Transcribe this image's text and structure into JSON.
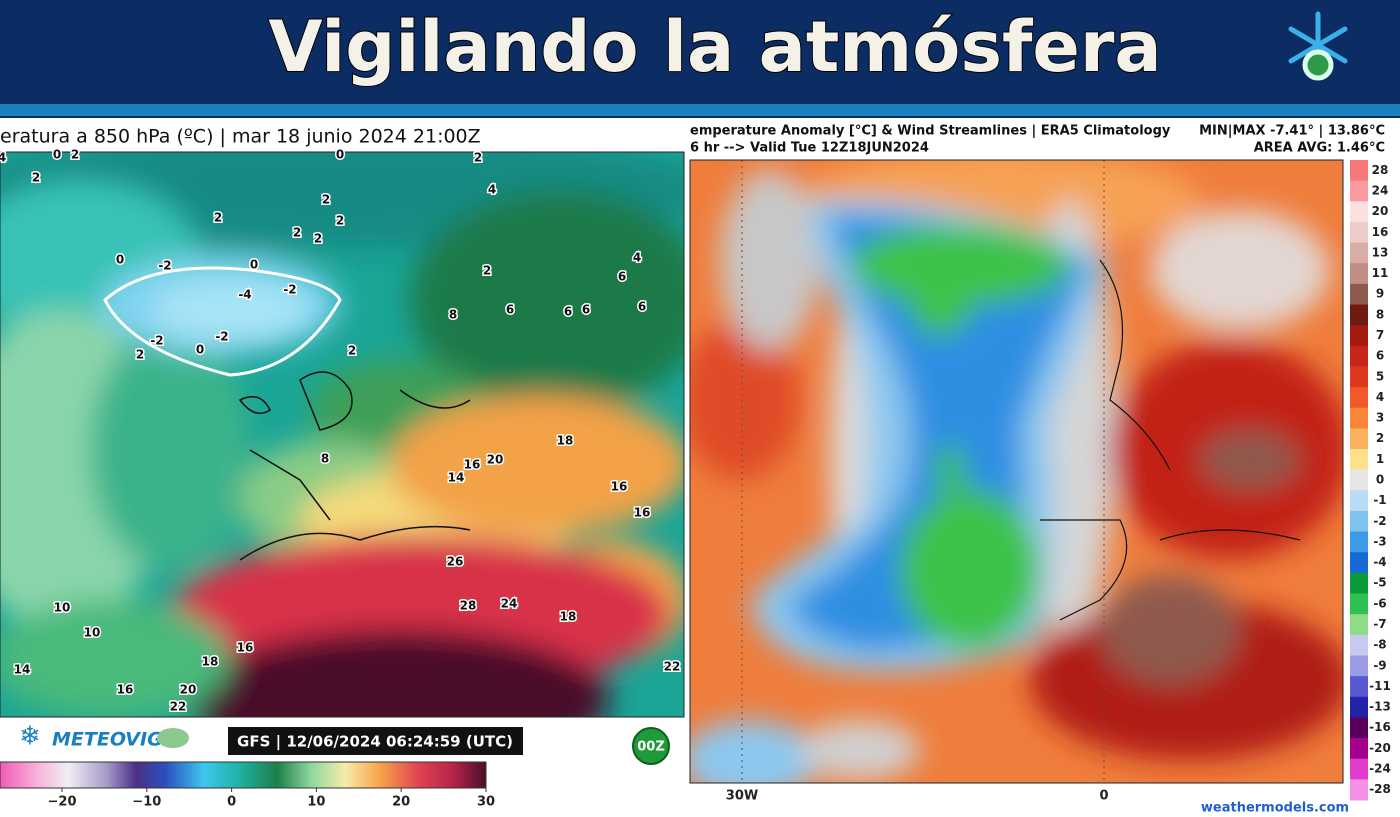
{
  "header": {
    "title": "Vigilando la atmósfera"
  },
  "left_map": {
    "title": "eratura a 850 hPa (ºC) | mar 18 junio 2024 21:00Z",
    "contour_labels": [
      "4",
      "0",
      "2",
      "0",
      "2",
      "2",
      "4",
      "2",
      "2",
      "2",
      "2",
      "2",
      "2",
      "0",
      "-2",
      "0",
      "-4",
      "-2",
      "4",
      "6",
      "6",
      "8",
      "6",
      "6",
      "6",
      "-2",
      "0",
      "-2",
      "2",
      "2",
      "18",
      "8",
      "16",
      "20",
      "14",
      "16",
      "16",
      "26",
      "28",
      "24",
      "18",
      "10",
      "10",
      "16",
      "18",
      "14",
      "16",
      "20",
      "22",
      "22"
    ],
    "brand": "METEOVIGO",
    "run_info": "GFS | 12/06/2024 06:24:59 (UTC)",
    "cycle": "00Z",
    "colorbar_ticks": [
      "−20",
      "−10",
      "0",
      "10",
      "20",
      "30"
    ]
  },
  "right_map": {
    "title": "emperature Anomaly [°C] & Wind Streamlines | ERA5 Climatology",
    "subtitle": "6 hr --> Valid Tue 12Z18JUN2024",
    "min_max": "MIN|MAX -7.41° | 13.86°C",
    "area_avg": "AREA AVG: 1.46°C",
    "colorbar_labels": [
      "28",
      "24",
      "20",
      "16",
      "13",
      "11",
      "9",
      "8",
      "7",
      "6",
      "5",
      "4",
      "3",
      "2",
      "1",
      "0",
      "-1",
      "-2",
      "-3",
      "-4",
      "-5",
      "-6",
      "-7",
      "-8",
      "-9",
      "-11",
      "-13",
      "-16",
      "-20",
      "-24",
      "-28"
    ],
    "x_axis_labels": [
      "30W",
      "0"
    ],
    "credit": "weathermodels.com"
  }
}
